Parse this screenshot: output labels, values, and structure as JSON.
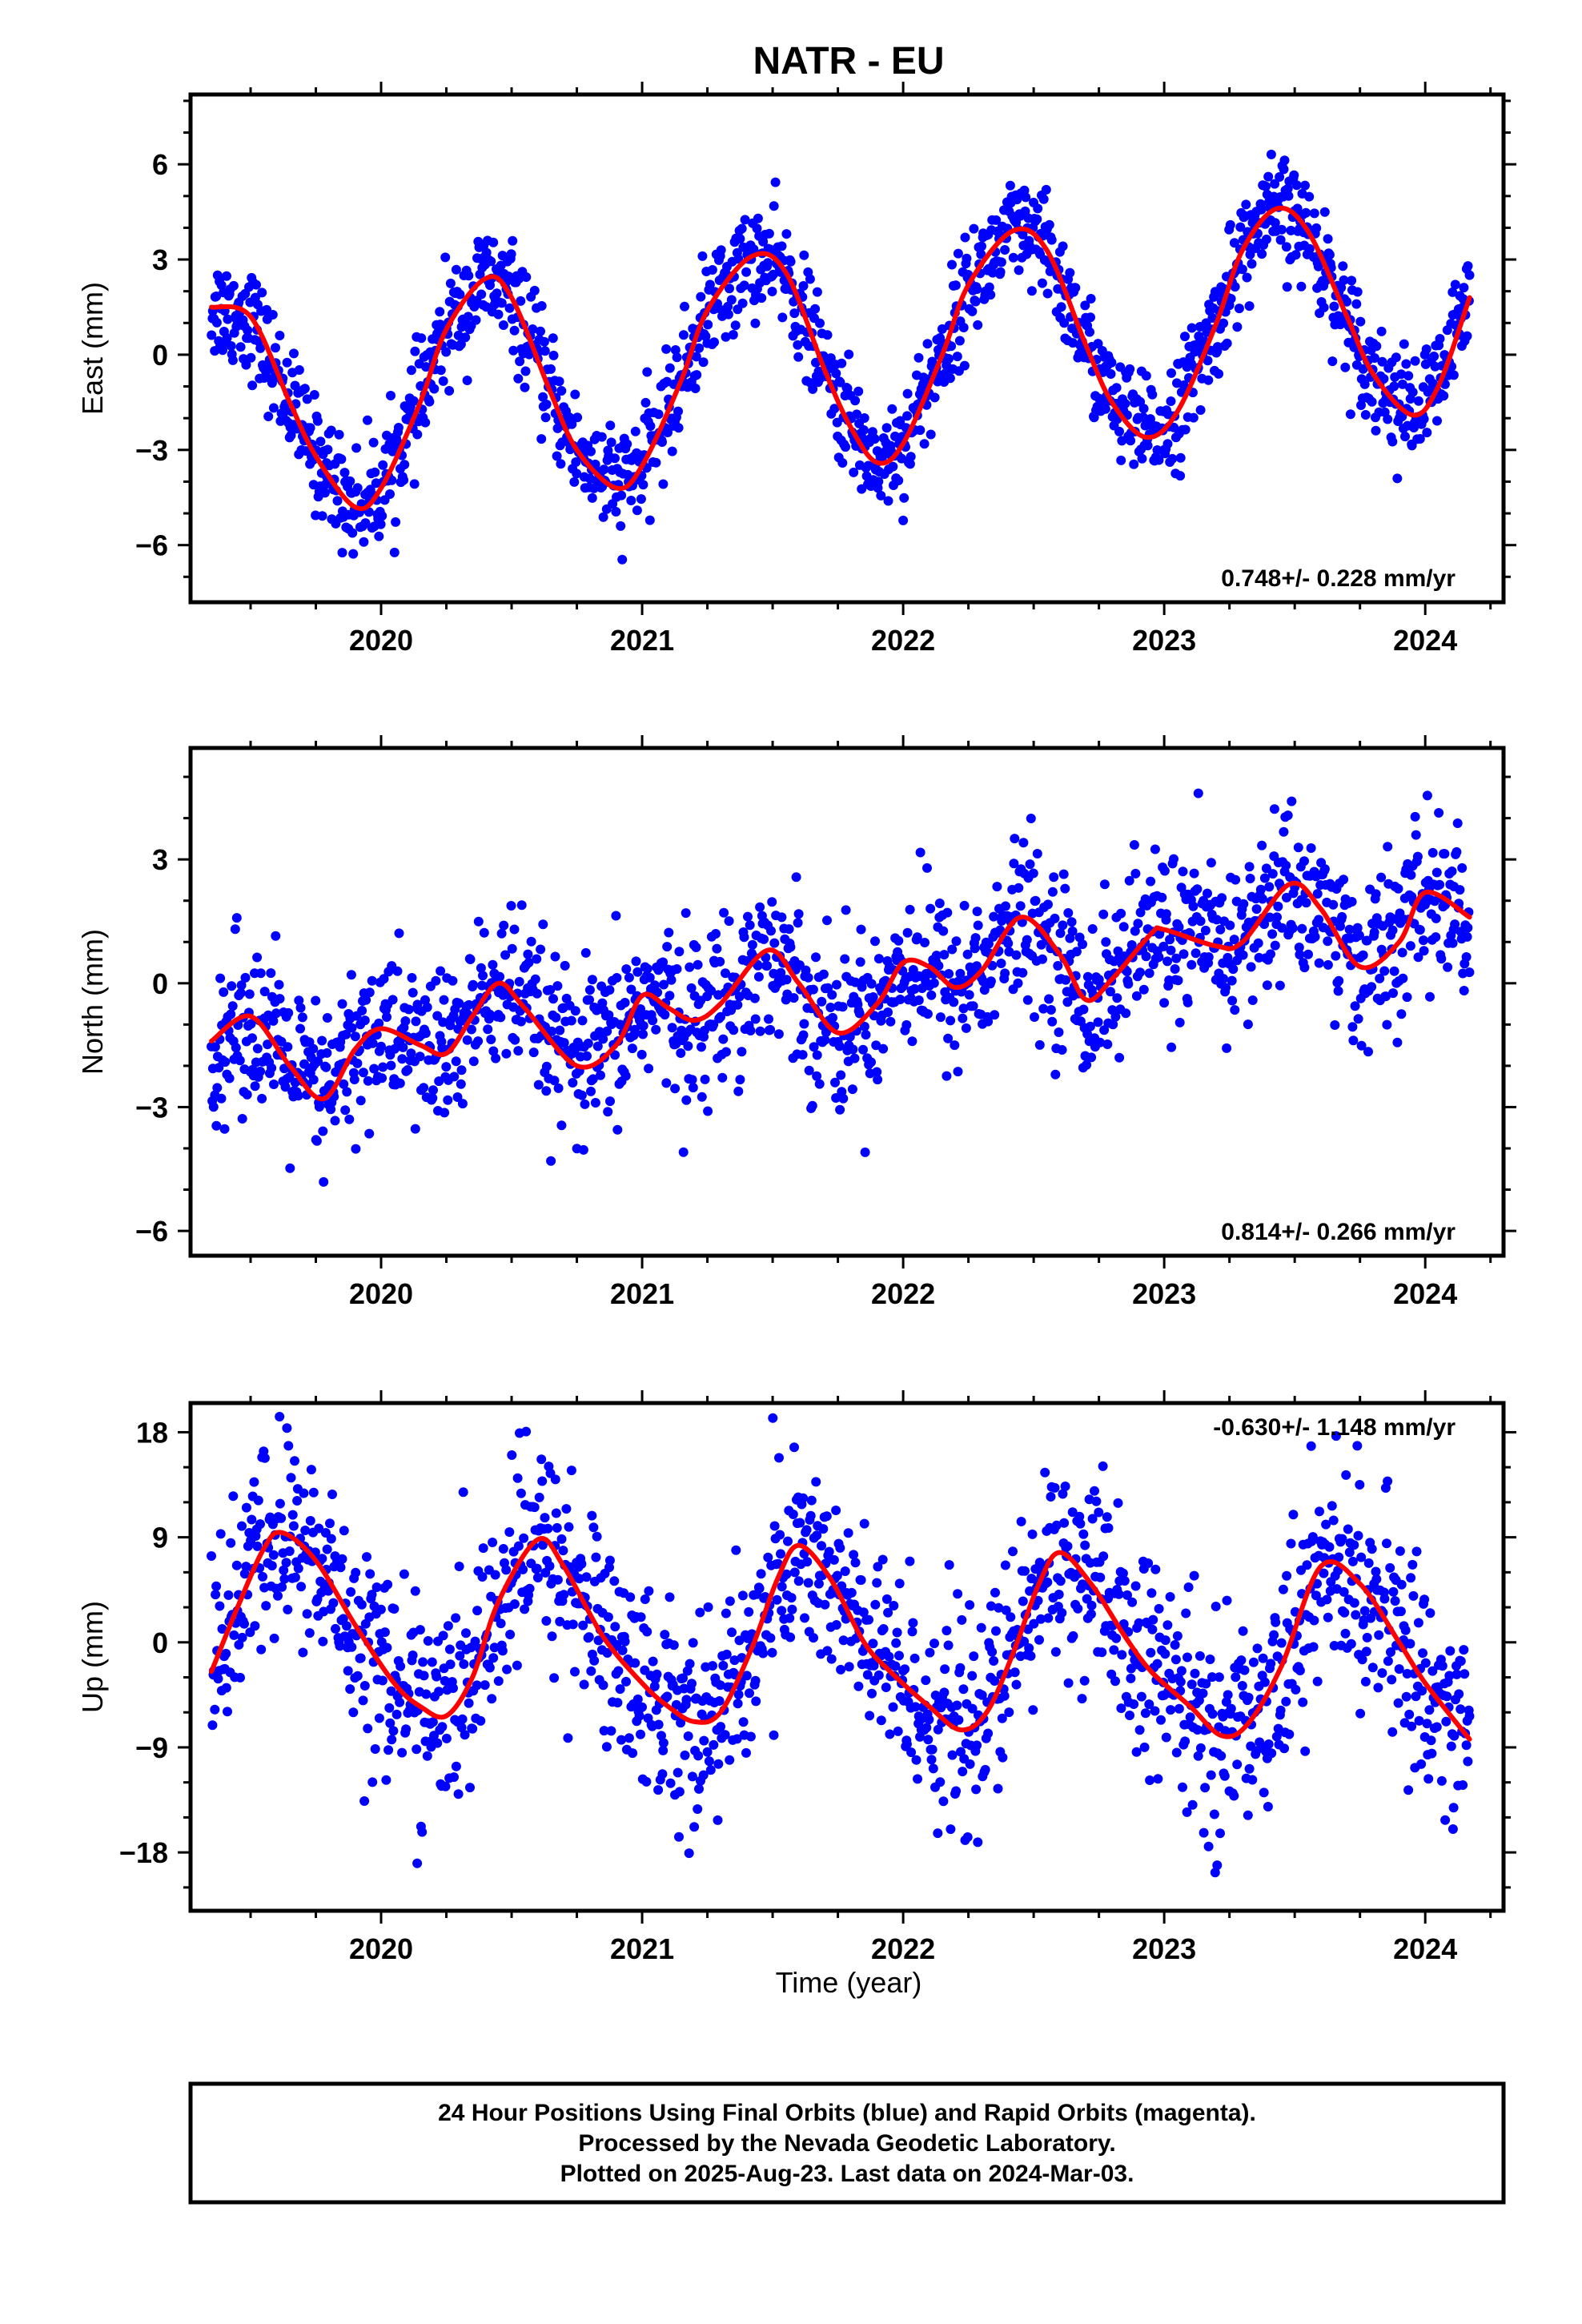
{
  "chart_data": {
    "title": "NATR - EU",
    "type": "scatter",
    "xlabel": "Time (year)",
    "x_range": [
      2019.27,
      2024.3
    ],
    "x_major_ticks": [
      2020,
      2021,
      2022,
      2023,
      2024
    ],
    "x_tick_labels": [
      "2020",
      "2021",
      "2022",
      "2023",
      "2024"
    ],
    "grid": false,
    "point_color": "#0000ff",
    "fit_color": "#ff0000",
    "data_start": 2019.35,
    "data_end": 2024.17,
    "panels": [
      {
        "id": "east",
        "ylabel": "East (mm)",
        "ylim": [
          -7.8,
          8.2
        ],
        "y_ticks": [
          -6,
          -3,
          0,
          3,
          6
        ],
        "y_tick_labels": [
          "−6",
          "−3",
          "0",
          "3",
          "6"
        ],
        "y_minor_step": 1,
        "rate_label": "0.748+/- 0.228 mm/yr",
        "rate_position": "bottom-right",
        "series": [
          {
            "kind": "points",
            "noise_sd": 0.85,
            "n": 1600
          },
          {
            "kind": "fit",
            "x": [
              2019.35,
              2019.5,
              2019.65,
              2019.75,
              2019.9,
              2020.0,
              2020.15,
              2020.25,
              2020.4,
              2020.5,
              2020.65,
              2020.75,
              2020.9,
              2021.0,
              2021.15,
              2021.25,
              2021.42,
              2021.55,
              2021.7,
              2021.8,
              2021.9,
              2022.0,
              2022.15,
              2022.25,
              2022.42,
              2022.55,
              2022.7,
              2022.8,
              2022.93,
              2023.05,
              2023.2,
              2023.3,
              2023.43,
              2023.55,
              2023.7,
              2023.8,
              2023.95,
              2024.05,
              2024.17
            ],
            "y": [
              1.5,
              1.2,
              -1.5,
              -3.2,
              -4.8,
              -4.2,
              -1.5,
              0.8,
              2.4,
              1.8,
              -1.2,
              -3.0,
              -4.2,
              -3.5,
              -0.8,
              1.4,
              3.1,
              2.6,
              -0.5,
              -2.3,
              -3.4,
              -2.8,
              0.0,
              2.2,
              3.9,
              3.3,
              0.3,
              -1.5,
              -2.6,
              -1.8,
              1.0,
              3.3,
              4.6,
              3.9,
              1.2,
              -0.6,
              -1.9,
              -1.0,
              1.8
            ]
          }
        ]
      },
      {
        "id": "north",
        "ylabel": "North (mm)",
        "ylim": [
          -6.6,
          5.7
        ],
        "y_ticks": [
          -6,
          -3,
          0,
          3
        ],
        "y_tick_labels": [
          "−6",
          "−3",
          "0",
          "3"
        ],
        "y_minor_step": 1,
        "rate_label": "0.814+/- 0.266 mm/yr",
        "rate_position": "bottom-right",
        "series": [
          {
            "kind": "points",
            "noise_sd": 1.0,
            "n": 1550
          },
          {
            "kind": "fit",
            "x": [
              2019.35,
              2019.5,
              2019.65,
              2019.78,
              2019.9,
              2020.0,
              2020.15,
              2020.25,
              2020.35,
              2020.45,
              2020.55,
              2020.75,
              2020.9,
              2021.0,
              2021.1,
              2021.2,
              2021.3,
              2021.48,
              2021.6,
              2021.75,
              2021.9,
              2022.0,
              2022.1,
              2022.2,
              2022.3,
              2022.45,
              2022.6,
              2022.7,
              2022.8,
              2022.95,
              2023.0,
              2023.2,
              2023.3,
              2023.48,
              2023.6,
              2023.75,
              2023.9,
              2024.0,
              2024.17
            ],
            "y": [
              -1.4,
              -0.8,
              -2.0,
              -2.8,
              -1.6,
              -1.1,
              -1.5,
              -1.7,
              -0.8,
              0.0,
              -0.6,
              -2.0,
              -1.5,
              -0.3,
              -0.6,
              -0.9,
              -0.5,
              0.8,
              0.0,
              -1.2,
              -0.5,
              0.5,
              0.4,
              -0.1,
              0.3,
              1.6,
              0.7,
              -0.4,
              0.1,
              1.2,
              1.3,
              0.9,
              1.0,
              2.4,
              1.8,
              0.4,
              1.0,
              2.2,
              1.6
            ]
          }
        ]
      },
      {
        "id": "up",
        "ylabel": "Up (mm)",
        "ylim": [
          -23,
          20.5
        ],
        "y_ticks": [
          -18,
          -9,
          0,
          9,
          18
        ],
        "y_tick_labels": [
          "−18",
          "−9",
          "0",
          "9",
          "18"
        ],
        "y_minor_step": 3,
        "rate_label": "-0.630+/- 1.148 mm/yr",
        "rate_position": "top-right",
        "series": [
          {
            "kind": "points",
            "noise_sd": 4.5,
            "n": 1500
          },
          {
            "kind": "fit",
            "x": [
              2019.35,
              2019.45,
              2019.55,
              2019.62,
              2019.75,
              2019.9,
              2020.05,
              2020.15,
              2020.25,
              2020.35,
              2020.45,
              2020.6,
              2020.7,
              2020.85,
              2021.0,
              2021.1,
              2021.2,
              2021.3,
              2021.42,
              2021.52,
              2021.6,
              2021.72,
              2021.85,
              2021.95,
              2022.1,
              2022.22,
              2022.32,
              2022.42,
              2022.52,
              2022.6,
              2022.72,
              2022.85,
              2022.95,
              2023.1,
              2023.22,
              2023.32,
              2023.45,
              2023.6,
              2023.75,
              2023.9,
              2024.0,
              2024.17
            ],
            "y": [
              -2.5,
              3.0,
              8.0,
              9.4,
              7.0,
              1.5,
              -3.5,
              -5.5,
              -6.3,
              -3.0,
              3.5,
              8.8,
              6.5,
              0.5,
              -3.5,
              -5.5,
              -6.8,
              -6.0,
              -0.5,
              5.5,
              8.3,
              5.5,
              0.0,
              -2.5,
              -5.5,
              -7.5,
              -6.0,
              -1.0,
              5.0,
              7.7,
              5.0,
              0.5,
              -2.5,
              -5.5,
              -8.0,
              -7.0,
              -2.0,
              6.5,
              5.0,
              0.0,
              -3.5,
              -8.3
            ]
          }
        ]
      }
    ]
  },
  "caption": {
    "line1": "24 Hour Positions Using Final Orbits (blue) and Rapid Orbits (magenta).",
    "line2": "Processed by the Nevada Geodetic Laboratory.",
    "line3": "Plotted on 2025-Aug-23. Last data on 2024-Mar-03."
  }
}
